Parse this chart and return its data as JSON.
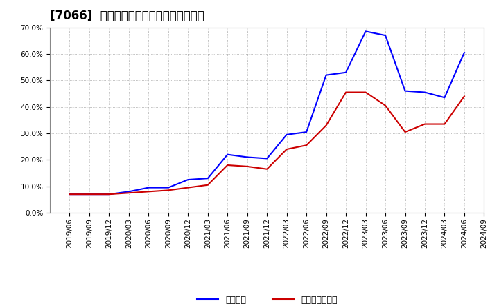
{
  "title": "[7066]  固定比率、固定長期適合率の推移",
  "x_labels": [
    "2019/06",
    "2019/09",
    "2019/12",
    "2020/03",
    "2020/06",
    "2020/09",
    "2020/12",
    "2021/03",
    "2021/06",
    "2021/09",
    "2021/12",
    "2022/03",
    "2022/06",
    "2022/09",
    "2022/12",
    "2023/03",
    "2023/06",
    "2023/09",
    "2023/12",
    "2024/03",
    "2024/06",
    "2024/09"
  ],
  "fixed_ratio": [
    7.0,
    7.0,
    7.0,
    8.0,
    9.5,
    9.5,
    12.5,
    13.0,
    22.0,
    21.0,
    20.5,
    29.5,
    30.5,
    52.0,
    53.0,
    68.5,
    67.0,
    46.0,
    45.5,
    43.5,
    60.5,
    null
  ],
  "fixed_long_ratio": [
    7.0,
    7.0,
    7.0,
    7.5,
    8.0,
    8.5,
    9.5,
    10.5,
    18.0,
    17.5,
    16.5,
    24.0,
    25.5,
    33.0,
    45.5,
    45.5,
    40.5,
    30.5,
    33.5,
    33.5,
    44.0,
    null
  ],
  "line1_color": "#0000ff",
  "line2_color": "#cc0000",
  "background_color": "#ffffff",
  "plot_bg_color": "#ffffff",
  "grid_color": "#aaaaaa",
  "ylim": [
    0.0,
    0.7
  ],
  "yticks": [
    0.0,
    0.1,
    0.2,
    0.3,
    0.4,
    0.5,
    0.6,
    0.7
  ],
  "legend1": "固定比率",
  "legend2": "固定長期適合率",
  "title_fontsize": 12,
  "tick_fontsize": 7.5,
  "legend_fontsize": 9
}
